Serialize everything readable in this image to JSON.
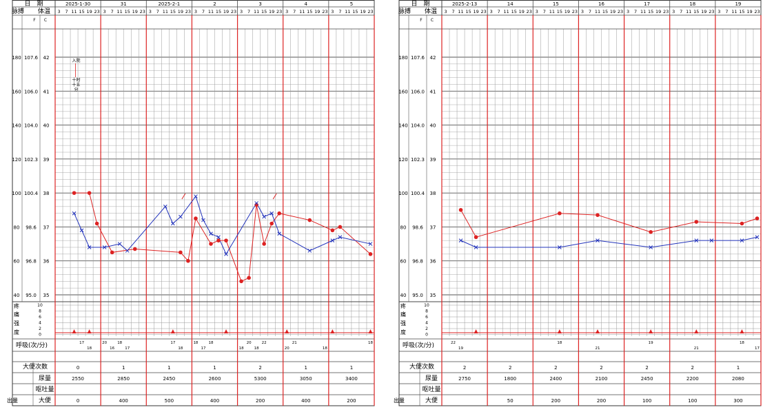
{
  "labels": {
    "date": "日　期",
    "pulse": "脉搏",
    "temp": "体温",
    "unitF": "F",
    "unitC": "C",
    "pain1": "疼",
    "pain2": "痛",
    "pain3": "强",
    "pain4": "度",
    "resp": "呼吸(次/分)",
    "stool_count": "大便次数",
    "urine": "尿量",
    "vomit": "呕吐量",
    "stool": "大便",
    "output": "出量",
    "annot1": "入院",
    "annot2": "十时",
    "annot3": "十五",
    "annot4": "分"
  },
  "time_labels": [
    "3",
    "7",
    "11",
    "15",
    "19",
    "23"
  ],
  "y_axis": {
    "pulse_ticks": [
      "180",
      "160",
      "140",
      "120",
      "100",
      "80",
      "60",
      "40"
    ],
    "f_ticks": [
      "107.6",
      "106.0",
      "104.0",
      "102.3",
      "100.4",
      "98.6",
      "96.8",
      "95.0"
    ],
    "c_ticks": [
      "42",
      "41",
      "40",
      "39",
      "38",
      "37",
      "36",
      "35"
    ],
    "pain_ticks": [
      "10",
      "8",
      "6",
      "4",
      "2",
      "0"
    ]
  },
  "colors": {
    "temp": "#2233bb",
    "pulse": "#dd2222",
    "day_divider": "#dd2222",
    "grid": "#444444"
  },
  "chart_data": [
    {
      "type": "line",
      "title": "",
      "dates": [
        "2025-1-30",
        "31",
        "2025-2-1",
        "2",
        "3",
        "4",
        "5"
      ],
      "times_per_day": [
        "3",
        "7",
        "11",
        "15",
        "19",
        "23"
      ],
      "ylim_pulse": [
        40,
        180
      ],
      "ylim_temp_c": [
        35,
        42
      ],
      "series": [
        {
          "key": "temperature_c",
          "color": "#2233bb",
          "marker": "x",
          "points": [
            {
              "slot": 2,
              "value": 37.4
            },
            {
              "slot": 3,
              "value": 36.9
            },
            {
              "slot": 4,
              "value": 36.4
            },
            {
              "slot": 6,
              "value": 36.4
            },
            {
              "slot": 8,
              "value": 36.5
            },
            {
              "slot": 9,
              "value": 36.3
            },
            {
              "slot": 14,
              "value": 37.6
            },
            {
              "slot": 15,
              "value": 37.1
            },
            {
              "slot": 16,
              "value": 37.3
            },
            {
              "slot": 18,
              "value": 37.9
            },
            {
              "slot": 19,
              "value": 37.2
            },
            {
              "slot": 20,
              "value": 36.8
            },
            {
              "slot": 21,
              "value": 36.7
            },
            {
              "slot": 22,
              "value": 36.2
            },
            {
              "slot": 26,
              "value": 37.7
            },
            {
              "slot": 27,
              "value": 37.3
            },
            {
              "slot": 28,
              "value": 37.4
            },
            {
              "slot": 29,
              "value": 36.8
            },
            {
              "slot": 33,
              "value": 36.3
            },
            {
              "slot": 36,
              "value": 36.6
            },
            {
              "slot": 37,
              "value": 36.7
            },
            {
              "slot": 41,
              "value": 36.5
            }
          ]
        },
        {
          "key": "pulse",
          "color": "#dd2222",
          "marker": "dot",
          "points": [
            {
              "slot": 2,
              "value": 100
            },
            {
              "slot": 4,
              "value": 100
            },
            {
              "slot": 5,
              "value": 82
            },
            {
              "slot": 7,
              "value": 65
            },
            {
              "slot": 10,
              "value": 67
            },
            {
              "slot": 16,
              "value": 65
            },
            {
              "slot": 17,
              "value": 60
            },
            {
              "slot": 18,
              "value": 85
            },
            {
              "slot": 20,
              "value": 70
            },
            {
              "slot": 21,
              "value": 72
            },
            {
              "slot": 22,
              "value": 72
            },
            {
              "slot": 24,
              "value": 48
            },
            {
              "slot": 25,
              "value": 50
            },
            {
              "slot": 26,
              "value": 93
            },
            {
              "slot": 27,
              "value": 70
            },
            {
              "slot": 28,
              "value": 82
            },
            {
              "slot": 29,
              "value": 88
            },
            {
              "slot": 33,
              "value": 84
            },
            {
              "slot": 36,
              "value": 78
            },
            {
              "slot": 37,
              "value": 80
            },
            {
              "slot": 41,
              "value": 64
            }
          ]
        }
      ],
      "pain_markers_slots": [
        2,
        4,
        15,
        22,
        30,
        36,
        41
      ],
      "respiration": [
        {
          "slot": 3,
          "value": "17"
        },
        {
          "slot": 4,
          "value": "18"
        },
        {
          "slot": 6,
          "value": "20"
        },
        {
          "slot": 7,
          "value": "16"
        },
        {
          "slot": 8,
          "value": "18"
        },
        {
          "slot": 9,
          "value": "17"
        },
        {
          "slot": 15,
          "value": "17"
        },
        {
          "slot": 16,
          "value": "18"
        },
        {
          "slot": 18,
          "value": "18"
        },
        {
          "slot": 19,
          "value": "17"
        },
        {
          "slot": 20,
          "value": "18"
        },
        {
          "slot": 24,
          "value": "18"
        },
        {
          "slot": 25,
          "value": "20"
        },
        {
          "slot": 26,
          "value": "18"
        },
        {
          "slot": 27,
          "value": "22"
        },
        {
          "slot": 30,
          "value": "20"
        },
        {
          "slot": 31,
          "value": "21"
        },
        {
          "slot": 35,
          "value": "18"
        },
        {
          "slot": 41,
          "value": "18"
        }
      ],
      "stool_count": [
        "0",
        "1",
        "1",
        "1",
        "2",
        "1",
        "1"
      ],
      "urine": [
        "2550",
        "2850",
        "2450",
        "2600",
        "5300",
        "3050",
        "3400"
      ],
      "vomit": [
        "",
        "",
        "",
        "",
        "",
        "",
        ""
      ],
      "stool": [
        "0",
        "400",
        "500",
        "400",
        "200",
        "400",
        "200"
      ]
    },
    {
      "type": "line",
      "title": "",
      "dates": [
        "2025-2-13",
        "14",
        "15",
        "16",
        "17",
        "18",
        "19"
      ],
      "times_per_day": [
        "3",
        "7",
        "11",
        "15",
        "19",
        "23"
      ],
      "ylim_pulse": [
        40,
        180
      ],
      "ylim_temp_c": [
        35,
        42
      ],
      "series": [
        {
          "key": "temperature_c",
          "color": "#2233bb",
          "marker": "x",
          "points": [
            {
              "slot": 2,
              "value": 36.6
            },
            {
              "slot": 4,
              "value": 36.4
            },
            {
              "slot": 15,
              "value": 36.4
            },
            {
              "slot": 20,
              "value": 36.6
            },
            {
              "slot": 27,
              "value": 36.4
            },
            {
              "slot": 33,
              "value": 36.6
            },
            {
              "slot": 35,
              "value": 36.6
            },
            {
              "slot": 39,
              "value": 36.6
            },
            {
              "slot": 41,
              "value": 36.7
            }
          ]
        },
        {
          "key": "pulse",
          "color": "#dd2222",
          "marker": "dot",
          "points": [
            {
              "slot": 2,
              "value": 90
            },
            {
              "slot": 4,
              "value": 74
            },
            {
              "slot": 15,
              "value": 88
            },
            {
              "slot": 20,
              "value": 87
            },
            {
              "slot": 27,
              "value": 77
            },
            {
              "slot": 33,
              "value": 83
            },
            {
              "slot": 39,
              "value": 82
            },
            {
              "slot": 41,
              "value": 85
            }
          ]
        }
      ],
      "pain_markers_slots": [
        4,
        15,
        20,
        27,
        33,
        39
      ],
      "respiration": [
        {
          "slot": 1,
          "value": "22"
        },
        {
          "slot": 2,
          "value": "19"
        },
        {
          "slot": 15,
          "value": "18"
        },
        {
          "slot": 20,
          "value": "21"
        },
        {
          "slot": 27,
          "value": "19"
        },
        {
          "slot": 33,
          "value": "21"
        },
        {
          "slot": 39,
          "value": "18"
        },
        {
          "slot": 41,
          "value": "17"
        }
      ],
      "stool_count": [
        "2",
        "2",
        "2",
        "2",
        "2",
        "2",
        "1"
      ],
      "urine": [
        "2750",
        "1800",
        "2400",
        "2100",
        "2450",
        "2200",
        "2080"
      ],
      "vomit": [
        "",
        "",
        "",
        "",
        "",
        "",
        ""
      ],
      "stool": [
        "",
        "50",
        "200",
        "200",
        "100",
        "100",
        "300"
      ]
    }
  ]
}
